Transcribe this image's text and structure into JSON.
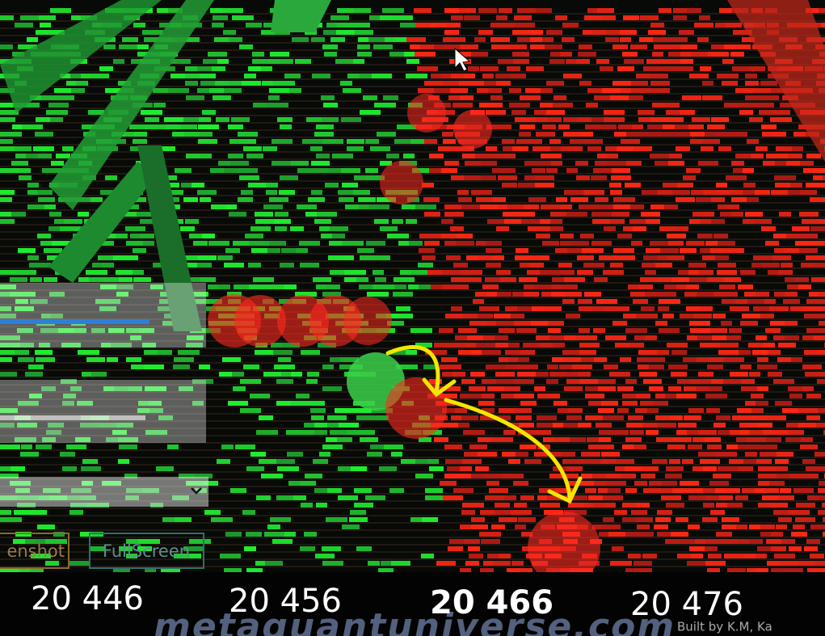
{
  "scene": {
    "buttons": [
      "enshot",
      "FullScreen"
    ]
  },
  "axis": {
    "labels": [
      "20 446",
      "20 456",
      "20 466",
      "20 476"
    ]
  },
  "footer": {
    "watermark": "metaquantuniverse.com",
    "credit": "Built by K.M, Ka"
  }
}
